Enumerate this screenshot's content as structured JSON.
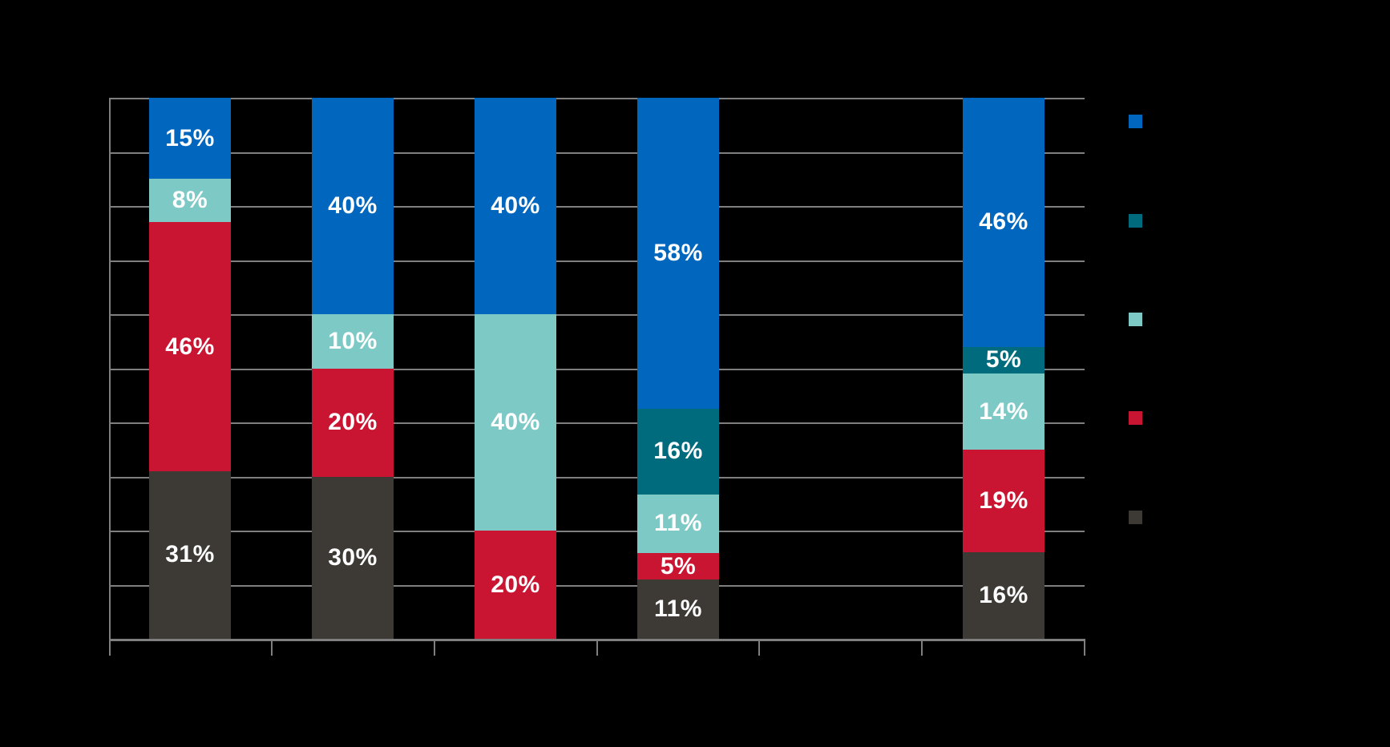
{
  "chart_data": {
    "type": "bar",
    "variant": "stacked-percentage-column",
    "title": "",
    "background": "#000000",
    "categories": [
      "",
      "",
      "",
      "",
      "",
      ""
    ],
    "series": [
      {
        "name": "",
        "color": "#0066BE",
        "values": [
          15,
          40,
          40,
          58,
          null,
          46
        ]
      },
      {
        "name": "",
        "color": "#006B7C",
        "values": [
          0,
          0,
          0,
          16,
          null,
          5
        ]
      },
      {
        "name": "",
        "color": "#7DC9C6",
        "values": [
          8,
          10,
          40,
          11,
          null,
          14
        ]
      },
      {
        "name": "",
        "color": "#C91432",
        "values": [
          46,
          20,
          20,
          5,
          null,
          19
        ]
      },
      {
        "name": "",
        "color": "#3D3935",
        "values": [
          31,
          30,
          0,
          11,
          null,
          16
        ]
      }
    ],
    "data_label_format": "{v}%",
    "data_label_color": "#FFFFFF",
    "ylim": [
      0,
      100
    ],
    "gridline_interval": 10,
    "grid_on": true,
    "gridline_color": "#7F7F7F",
    "axis_color": "#7F7F7F",
    "legend_position": "right",
    "legend_labels_visible": false,
    "x_axis_labels_visible": false,
    "y_axis_labels_visible": false
  }
}
